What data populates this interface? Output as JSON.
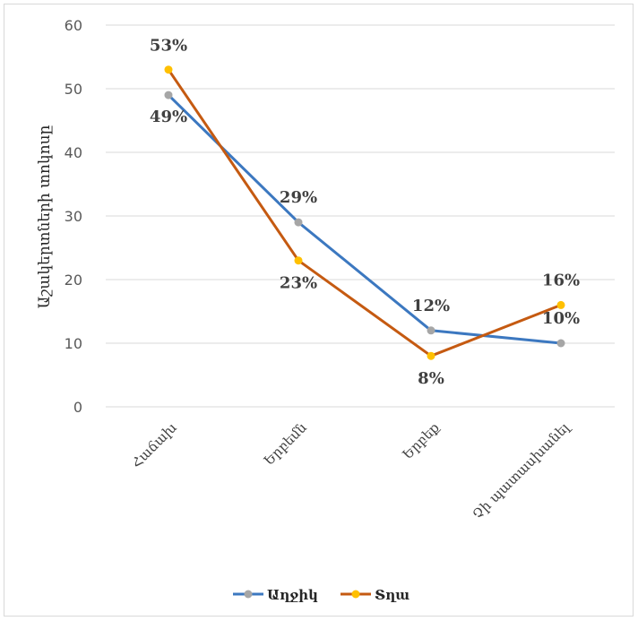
{
  "chart_data": {
    "type": "line",
    "categories": [
      "Հաճախ",
      "Երբեմն",
      "Երբեք",
      "Չի պատասխանել"
    ],
    "ylabel": "Աշակերտների տոկոսը",
    "xlabel": "",
    "ylim": [
      0,
      60
    ],
    "yticks": [
      0,
      10,
      20,
      30,
      40,
      50,
      60
    ],
    "grid": true,
    "legend_position": "bottom",
    "series": [
      {
        "name": "Աղջիկ",
        "color": "#3c78c0",
        "marker_color": "#a6a6a6",
        "values": [
          49,
          29,
          12,
          10
        ],
        "labels": [
          "49%",
          "29%",
          "12%",
          "10%"
        ]
      },
      {
        "name": "Տղա",
        "color": "#c55a11",
        "marker_color": "#ffc000",
        "values": [
          53,
          23,
          8,
          16
        ],
        "labels": [
          "53%",
          "23%",
          "8%",
          "16%"
        ]
      }
    ]
  }
}
